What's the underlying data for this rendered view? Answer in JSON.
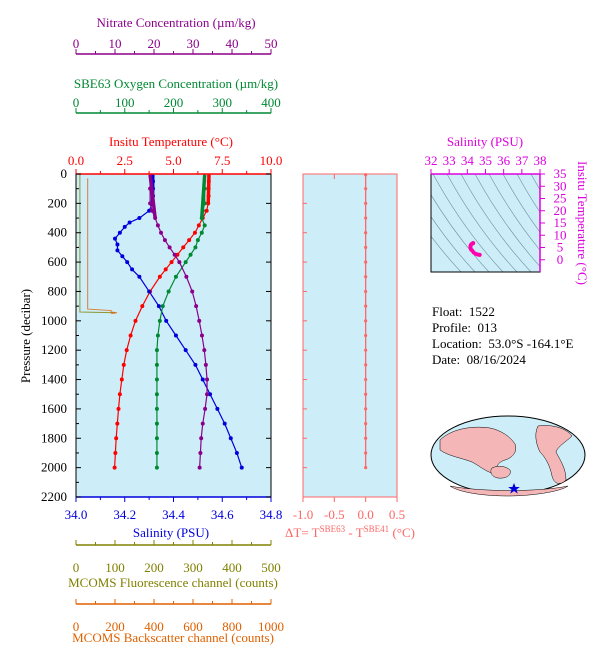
{
  "info": {
    "float_label": "Float:",
    "float_value": "1522",
    "profile_label": "Profile:",
    "profile_value": "013",
    "location_label": "Location:",
    "location_value": "53.0°S  -164.1°E",
    "date_label": "Date:",
    "date_value": "08/16/2024"
  },
  "colors": {
    "temperature": "#ff0000",
    "salinity": "#0000dd",
    "oxygen": "#008833",
    "nitrate": "#8b008b",
    "fluorescence": "#808000",
    "backscatter": "#e06000",
    "ts_axis": "#dd00dd",
    "panel_bg": "#cdeef8",
    "delta_t": "#ff6666",
    "map_land": "#f4b6b6"
  },
  "chart_data": [
    {
      "type": "line",
      "panel": "main-profile",
      "ylabel": "Pressure (decibar)",
      "ylim": [
        2200,
        0
      ],
      "y_ticks": [
        0,
        200,
        400,
        600,
        800,
        1000,
        1200,
        1400,
        1600,
        1800,
        2000,
        2200
      ],
      "grid": false,
      "axes": {
        "nitrate": {
          "label": "Nitrate Concentration (µm/kg)",
          "range": [
            0,
            50
          ],
          "ticks": [
            0,
            10,
            20,
            30,
            40,
            50
          ]
        },
        "oxygen": {
          "label": "SBE63 Oxygen Concentration (µm/kg)",
          "range": [
            0,
            400
          ],
          "ticks": [
            0,
            100,
            200,
            300,
            400
          ]
        },
        "temperature": {
          "label": "Insitu Temperature (°C)",
          "range": [
            0,
            10
          ],
          "ticks": [
            "0.0",
            "2.5",
            "5.0",
            "7.5",
            "10.0"
          ]
        },
        "salinity": {
          "label": "Salinity (PSU)",
          "range": [
            34.0,
            34.8
          ],
          "ticks": [
            "34.0",
            "34.2",
            "34.4",
            "34.6",
            "34.8"
          ]
        },
        "fluorescence": {
          "label": "MCOMS Fluorescence channel (counts)",
          "range": [
            0,
            500
          ],
          "ticks": [
            0,
            100,
            200,
            300,
            400,
            500
          ]
        },
        "backscatter": {
          "label": "MCOMS Backscatter channel (counts)",
          "range": [
            0,
            1000
          ],
          "ticks": [
            0,
            200,
            400,
            600,
            800,
            1000
          ]
        }
      },
      "series": [
        {
          "key": "temperature",
          "pressure": [
            5,
            50,
            100,
            150,
            200,
            250,
            300,
            350,
            400,
            450,
            500,
            550,
            600,
            650,
            700,
            800,
            900,
            1000,
            1100,
            1200,
            1300,
            1400,
            1500,
            1600,
            1700,
            1800,
            1900,
            2000
          ],
          "values": [
            6.82,
            6.81,
            6.8,
            6.8,
            6.78,
            6.7,
            6.5,
            6.3,
            6.1,
            5.8,
            5.5,
            5.2,
            4.9,
            4.6,
            4.3,
            3.8,
            3.4,
            3.05,
            2.8,
            2.6,
            2.45,
            2.35,
            2.25,
            2.18,
            2.12,
            2.06,
            2.02,
            1.98
          ]
        },
        {
          "key": "salinity",
          "pressure": [
            5,
            50,
            100,
            150,
            200,
            250,
            300,
            330,
            360,
            400,
            440,
            480,
            520,
            560,
            600,
            650,
            700,
            800,
            900,
            1000,
            1100,
            1200,
            1300,
            1400,
            1500,
            1600,
            1700,
            1800,
            1900,
            2000
          ],
          "values": [
            34.315,
            34.316,
            34.316,
            34.316,
            34.314,
            34.3,
            34.26,
            34.22,
            34.2,
            34.18,
            34.16,
            34.17,
            34.17,
            34.19,
            34.21,
            34.23,
            34.26,
            34.3,
            34.34,
            34.37,
            34.41,
            34.45,
            34.49,
            34.52,
            34.55,
            34.58,
            34.61,
            34.635,
            34.66,
            34.68
          ]
        },
        {
          "key": "oxygen",
          "pressure": [
            5,
            100,
            200,
            250,
            300,
            350,
            400,
            450,
            500,
            550,
            600,
            700,
            800,
            900,
            1000,
            1100,
            1200,
            1300,
            1400,
            1500,
            1600,
            1700,
            1800,
            1900,
            2000
          ],
          "values": [
            264,
            264,
            264,
            260,
            258,
            264,
            258,
            250,
            245,
            235,
            225,
            205,
            190,
            178,
            172,
            168,
            166,
            166,
            166,
            166,
            166,
            166,
            166,
            166,
            166
          ]
        },
        {
          "key": "nitrate",
          "pressure": [
            5,
            100,
            200,
            250,
            300,
            350,
            400,
            450,
            500,
            550,
            600,
            700,
            800,
            900,
            1000,
            1100,
            1200,
            1300,
            1400,
            1500,
            1600,
            1700,
            1800,
            1900,
            2000
          ],
          "values": [
            19.0,
            19.0,
            19.0,
            19.5,
            20.3,
            21.0,
            21.8,
            22.8,
            24.0,
            25.3,
            26.5,
            28.3,
            29.8,
            30.8,
            31.6,
            32.3,
            32.9,
            33.3,
            33.6,
            33.6,
            33.1,
            32.5,
            32.1,
            31.9,
            31.7
          ]
        },
        {
          "key": "fluorescence",
          "pressure": [
            0,
            940,
            945
          ],
          "values": [
            10,
            10,
            100
          ]
        },
        {
          "key": "backscatter",
          "pressure": [
            30,
            920,
            930,
            940,
            945,
            950
          ],
          "values": [
            60,
            60,
            180,
            180,
            210,
            180
          ]
        }
      ]
    },
    {
      "type": "scatter",
      "panel": "delta-t",
      "xlabel": "ΔT= T^SBE63 - T^SBE41 (°C)",
      "xlim": [
        -1.0,
        0.5
      ],
      "x_ticks": [
        "-1.0",
        "-0.5",
        "0.0",
        "0.5"
      ],
      "pressure": [
        5,
        100,
        200,
        300,
        400,
        500,
        600,
        700,
        800,
        900,
        1000,
        1100,
        1200,
        1300,
        1400,
        1500,
        1600,
        1700,
        1800,
        1900,
        2000
      ],
      "values": [
        0.0,
        0.0,
        0.0,
        0.0,
        0.0,
        0.0,
        0.0,
        0.0,
        0.0,
        0.0,
        0.0,
        0.0,
        0.0,
        0.0,
        0.0,
        0.0,
        0.0,
        0.0,
        0.0,
        0.0,
        0.0
      ]
    },
    {
      "type": "scatter",
      "panel": "t-s-diagram",
      "xlabel": "Salinity (PSU)",
      "ylabel": "Insitu Temperature (°C)",
      "xlim": [
        32,
        38
      ],
      "ylim": [
        -5,
        35
      ],
      "x_ticks": [
        32,
        33,
        34,
        35,
        36,
        37,
        38
      ],
      "y_ticks": [
        0,
        5,
        10,
        15,
        20,
        25,
        30,
        35
      ],
      "salinity": [
        34.32,
        34.31,
        34.25,
        34.2,
        34.17,
        34.17,
        34.2,
        34.26,
        34.34,
        34.45,
        34.55,
        34.63,
        34.68
      ],
      "temperature": [
        6.8,
        6.8,
        6.5,
        6.1,
        5.5,
        4.9,
        4.3,
        3.8,
        3.05,
        2.45,
        2.2,
        2.06,
        1.98
      ]
    }
  ]
}
